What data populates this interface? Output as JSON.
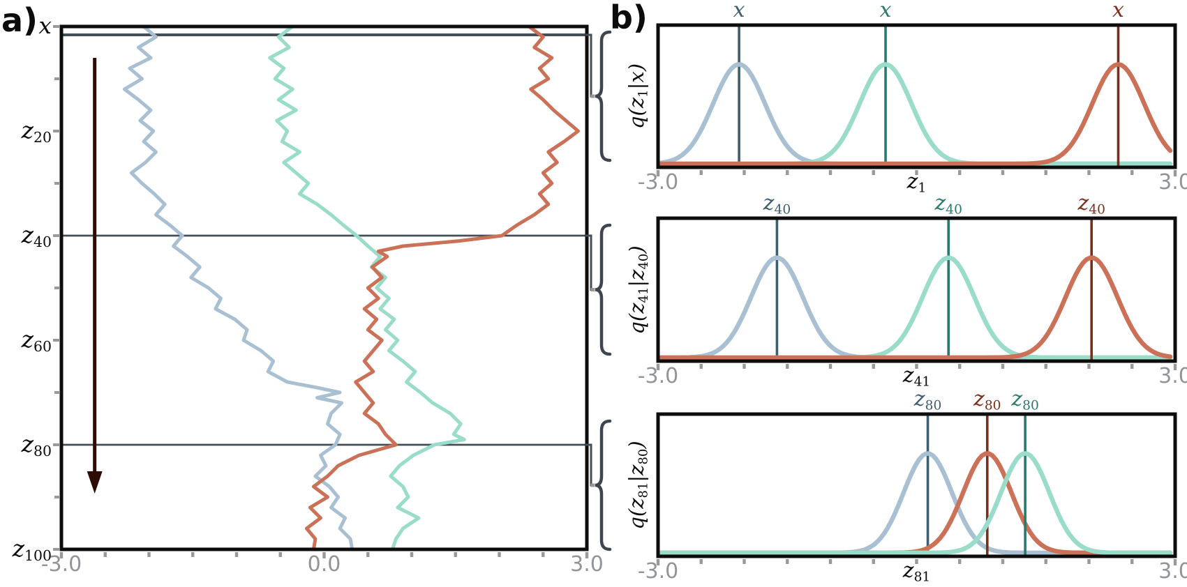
{
  "figure": {
    "panel_a_label": "a)",
    "panel_b_label": "b)"
  },
  "colors": {
    "trace_blue": "#a9c0d2",
    "trace_teal": "#99dcca",
    "trace_orange": "#cb7157",
    "marker_blue": "#3e5d6f",
    "marker_teal": "#2a7a6c",
    "marker_red": "#7c2d1b",
    "arrow": "#2e0b03",
    "gridline": "#454d55",
    "brace": "#3d464e",
    "tick": "#98999b",
    "tick_text": "#919598",
    "frame": "#0d0d0d"
  },
  "chart_data": {
    "panel_a": {
      "type": "line",
      "title": "",
      "xlabel": "",
      "ylabel_top": "x",
      "xlim": [
        -3.0,
        3.0
      ],
      "step_range": [
        0,
        100
      ],
      "x_tick_labels": [
        {
          "v": -3,
          "label": "-3.0"
        },
        {
          "v": 0,
          "label": "0.0"
        },
        {
          "v": 3,
          "label": "3.0"
        }
      ],
      "x_minor_tick_step": 0.5,
      "y_tick_labels": [
        {
          "step": 0,
          "label": "x"
        },
        {
          "step": 20,
          "label": "z_{20}"
        },
        {
          "step": 40,
          "label": "z_{40}"
        },
        {
          "step": 60,
          "label": "z_{60}"
        },
        {
          "step": 80,
          "label": "z_{80}"
        },
        {
          "step": 100,
          "label": "z_{100}"
        }
      ],
      "y_minor_tick_steps": [
        10,
        30,
        50,
        70,
        90
      ],
      "hline_steps": [
        1.6,
        40,
        80
      ],
      "arrow": {
        "x_value": -2.62,
        "from_step": 6,
        "to_step": 88
      },
      "series": [
        {
          "name": "blue-trajectory",
          "color": "#a9c0d2",
          "points": [
            [
              0,
              -2.06
            ],
            [
              2,
              -1.92
            ],
            [
              4,
              -2.12
            ],
            [
              6,
              -1.98
            ],
            [
              8,
              -2.22
            ],
            [
              10,
              -2.08
            ],
            [
              12,
              -2.28
            ],
            [
              14,
              -2.12
            ],
            [
              16,
              -1.98
            ],
            [
              18,
              -2.1
            ],
            [
              20,
              -1.95
            ],
            [
              22,
              -2.06
            ],
            [
              24,
              -1.92
            ],
            [
              26,
              -2.04
            ],
            [
              28,
              -2.2
            ],
            [
              30,
              -2.08
            ],
            [
              32,
              -1.94
            ],
            [
              34,
              -1.82
            ],
            [
              36,
              -1.92
            ],
            [
              38,
              -1.76
            ],
            [
              40,
              -1.62
            ],
            [
              42,
              -1.72
            ],
            [
              44,
              -1.56
            ],
            [
              46,
              -1.42
            ],
            [
              48,
              -1.52
            ],
            [
              50,
              -1.32
            ],
            [
              52,
              -1.18
            ],
            [
              54,
              -1.24
            ],
            [
              56,
              -1.02
            ],
            [
              58,
              -0.88
            ],
            [
              60,
              -0.92
            ],
            [
              62,
              -0.72
            ],
            [
              64,
              -0.58
            ],
            [
              66,
              -0.64
            ],
            [
              68,
              -0.42
            ],
            [
              69,
              -0.1
            ],
            [
              70,
              0.18
            ],
            [
              71,
              -0.08
            ],
            [
              72,
              0.2
            ],
            [
              74,
              0.08
            ],
            [
              76,
              0.04
            ],
            [
              78,
              0.18
            ],
            [
              80,
              0.13
            ],
            [
              82,
              -0.04
            ],
            [
              84,
              0.02
            ],
            [
              86,
              -0.1
            ],
            [
              88,
              0.06
            ],
            [
              90,
              0.16
            ],
            [
              92,
              0.08
            ],
            [
              94,
              0.24
            ],
            [
              96,
              0.18
            ],
            [
              98,
              0.3
            ],
            [
              100,
              0.32
            ]
          ]
        },
        {
          "name": "teal-trajectory",
          "color": "#99dcca",
          "points": [
            [
              0,
              -0.36
            ],
            [
              2,
              -0.52
            ],
            [
              4,
              -0.4
            ],
            [
              6,
              -0.62
            ],
            [
              8,
              -0.46
            ],
            [
              10,
              -0.56
            ],
            [
              12,
              -0.36
            ],
            [
              14,
              -0.52
            ],
            [
              16,
              -0.32
            ],
            [
              18,
              -0.54
            ],
            [
              20,
              -0.42
            ],
            [
              22,
              -0.48
            ],
            [
              24,
              -0.28
            ],
            [
              26,
              -0.46
            ],
            [
              28,
              -0.32
            ],
            [
              30,
              -0.18
            ],
            [
              32,
              -0.28
            ],
            [
              34,
              -0.08
            ],
            [
              36,
              0.08
            ],
            [
              38,
              0.22
            ],
            [
              40,
              0.37
            ],
            [
              42,
              0.5
            ],
            [
              44,
              0.64
            ],
            [
              46,
              0.54
            ],
            [
              48,
              0.7
            ],
            [
              50,
              0.6
            ],
            [
              52,
              0.74
            ],
            [
              54,
              0.64
            ],
            [
              56,
              0.8
            ],
            [
              58,
              0.7
            ],
            [
              60,
              0.84
            ],
            [
              62,
              0.74
            ],
            [
              64,
              0.9
            ],
            [
              66,
              1.04
            ],
            [
              68,
              0.94
            ],
            [
              70,
              1.1
            ],
            [
              72,
              1.24
            ],
            [
              74,
              1.44
            ],
            [
              76,
              1.56
            ],
            [
              78,
              1.48
            ],
            [
              79,
              1.6
            ],
            [
              80,
              1.26
            ],
            [
              82,
              1.02
            ],
            [
              84,
              0.86
            ],
            [
              86,
              0.76
            ],
            [
              88,
              0.9
            ],
            [
              90,
              0.96
            ],
            [
              92,
              0.84
            ],
            [
              94,
              1.08
            ],
            [
              96,
              0.9
            ],
            [
              98,
              0.82
            ],
            [
              100,
              0.78
            ]
          ]
        },
        {
          "name": "orange-trajectory",
          "color": "#cb7157",
          "points": [
            [
              0,
              2.34
            ],
            [
              2,
              2.5
            ],
            [
              4,
              2.4
            ],
            [
              6,
              2.6
            ],
            [
              8,
              2.46
            ],
            [
              10,
              2.56
            ],
            [
              12,
              2.36
            ],
            [
              14,
              2.5
            ],
            [
              16,
              2.62
            ],
            [
              18,
              2.76
            ],
            [
              20,
              2.9
            ],
            [
              22,
              2.74
            ],
            [
              24,
              2.56
            ],
            [
              26,
              2.66
            ],
            [
              28,
              2.5
            ],
            [
              30,
              2.6
            ],
            [
              32,
              2.46
            ],
            [
              34,
              2.56
            ],
            [
              36,
              2.4
            ],
            [
              38,
              2.2
            ],
            [
              40,
              2.03
            ],
            [
              41,
              1.55
            ],
            [
              42,
              0.9
            ],
            [
              43,
              0.62
            ],
            [
              44,
              0.72
            ],
            [
              46,
              0.55
            ],
            [
              48,
              0.66
            ],
            [
              50,
              0.5
            ],
            [
              52,
              0.62
            ],
            [
              54,
              0.46
            ],
            [
              56,
              0.6
            ],
            [
              58,
              0.5
            ],
            [
              60,
              0.66
            ],
            [
              62,
              0.56
            ],
            [
              64,
              0.46
            ],
            [
              66,
              0.56
            ],
            [
              68,
              0.36
            ],
            [
              70,
              0.46
            ],
            [
              72,
              0.56
            ],
            [
              74,
              0.46
            ],
            [
              76,
              0.62
            ],
            [
              78,
              0.7
            ],
            [
              80,
              0.82
            ],
            [
              82,
              0.4
            ],
            [
              84,
              0.16
            ],
            [
              86,
              0.04
            ],
            [
              88,
              -0.12
            ],
            [
              90,
              0.04
            ],
            [
              92,
              -0.16
            ],
            [
              94,
              -0.04
            ],
            [
              96,
              -0.2
            ],
            [
              98,
              -0.1
            ],
            [
              100,
              -0.12
            ]
          ]
        }
      ]
    },
    "panel_b": {
      "type": "line",
      "subplots": [
        {
          "ylabel": "q(z_{1}|x)",
          "xlabel": "z_{1}",
          "xlim": [
            -3.0,
            3.0
          ],
          "left_tick": "-3.0",
          "right_tick": "3.0",
          "sigma": 0.3,
          "peak_fraction": 0.7,
          "markers": [
            {
              "label": "x",
              "mean": -2.06,
              "line_color": "#3e5d6f",
              "fill_color": "#a9c0d2"
            },
            {
              "label": "x",
              "mean": -0.36,
              "line_color": "#2a7a6c",
              "fill_color": "#99dcca"
            },
            {
              "label": "x",
              "mean": 2.34,
              "line_color": "#7c2d1b",
              "fill_color": "#cb7157"
            }
          ]
        },
        {
          "ylabel": "q(z_{41}|z_{40})",
          "xlabel": "z_{41}",
          "xlim": [
            -3.0,
            3.0
          ],
          "left_tick": "-3.0",
          "right_tick": "3.0",
          "sigma": 0.3,
          "peak_fraction": 0.7,
          "markers": [
            {
              "label": "z_{40}",
              "mean": -1.62,
              "line_color": "#3e5d6f",
              "fill_color": "#a9c0d2"
            },
            {
              "label": "z_{40}",
              "mean": 0.37,
              "line_color": "#2a7a6c",
              "fill_color": "#99dcca"
            },
            {
              "label": "z_{40}",
              "mean": 2.03,
              "line_color": "#7c2d1b",
              "fill_color": "#cb7157"
            }
          ]
        },
        {
          "ylabel": "q(z_{81}|z_{80})",
          "xlabel": "z_{81}",
          "xlim": [
            -3.0,
            3.0
          ],
          "left_tick": "-3.0",
          "right_tick": "3.0",
          "sigma": 0.28,
          "peak_fraction": 0.7,
          "markers": [
            {
              "label": "z_{80}",
              "mean": 0.13,
              "line_color": "#3e5d6f",
              "fill_color": "#a9c0d2"
            },
            {
              "label": "z_{80}",
              "mean": 0.82,
              "line_color": "#7c2d1b",
              "fill_color": "#cb7157"
            },
            {
              "label": "z_{80}",
              "mean": 1.26,
              "line_color": "#2a7a6c",
              "fill_color": "#99dcca"
            }
          ]
        }
      ]
    }
  }
}
